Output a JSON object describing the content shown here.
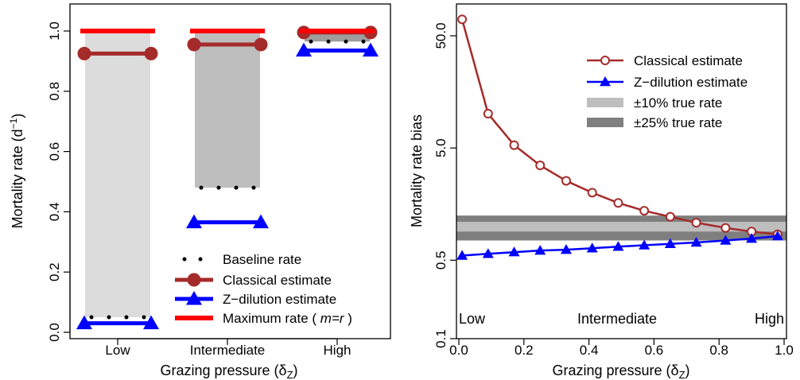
{
  "chart_data": [
    {
      "type": "bar",
      "categories": [
        "Low",
        "Intermediate",
        "High"
      ],
      "xlabel": "Grazing pressure (δZ)",
      "xlabel_parts": {
        "main": "Grazing pressure (δ",
        "sub": "Z",
        "close": ")"
      },
      "ylabel": "Mortality rate (d−1)",
      "ylabel_parts": {
        "main": "Mortality rate (d",
        "sup": "−1",
        "close": ")"
      },
      "ylim": [
        0,
        1
      ],
      "yticks": [
        "0.0",
        "0.2",
        "0.4",
        "0.6",
        "0.8",
        "1.0"
      ],
      "grid": false,
      "legend_position": "bottom-right",
      "series": [
        {
          "name": "Baseline rate",
          "values": [
            0.05,
            0.48,
            0.965
          ],
          "style": "dotted",
          "color": "#000000"
        },
        {
          "name": "Classical estimate",
          "values": [
            0.925,
            0.955,
            0.995
          ],
          "style": "line-circle",
          "color": "#A52A2A"
        },
        {
          "name": "Z−dilution estimate",
          "values": [
            0.03,
            0.365,
            0.935
          ],
          "style": "line-triangle",
          "color": "#0000FF"
        },
        {
          "name": "Maximum rate ( m=r )",
          "legend_parts": {
            "a": "Maximum rate ( ",
            "b": "m=r",
            "c": " )"
          },
          "values": [
            1.0,
            1.0,
            1.0
          ],
          "style": "line",
          "color": "#FF0000"
        }
      ],
      "shaded_ranges": [
        {
          "category": "Low",
          "from": 0.05,
          "to": 1.0,
          "color": "#DCDCDC"
        },
        {
          "category": "Intermediate",
          "from": 0.48,
          "to": 1.0,
          "color": "#BEBEBE"
        },
        {
          "category": "High",
          "from": 0.965,
          "to": 1.0,
          "color": "#9E9E9E"
        }
      ]
    },
    {
      "type": "line",
      "xlabel": "Grazing pressure (δZ)",
      "xlabel_parts": {
        "main": "Grazing pressure (δ",
        "sub": "Z",
        "close": ")"
      },
      "ylabel": "Mortality rate bias",
      "xlim": [
        0,
        1
      ],
      "xticks": [
        "0.0",
        "0.2",
        "0.4",
        "0.6",
        "0.8",
        "1.0"
      ],
      "ylim": [
        0.1,
        80
      ],
      "yscale": "log",
      "yticks": [
        "0.1",
        "0.5",
        "5.0",
        "50.0"
      ],
      "grid": false,
      "legend_position": "top-right",
      "region_labels": [
        "Low",
        "Intermediate",
        "High"
      ],
      "series": [
        {
          "name": "Classical estimate",
          "color": "#A52A2A",
          "marker": "open-circle",
          "x": [
            0.01,
            0.09,
            0.17,
            0.25,
            0.33,
            0.41,
            0.49,
            0.57,
            0.65,
            0.73,
            0.82,
            0.9,
            0.98
          ],
          "y": [
            70,
            10.1,
            5.3,
            3.5,
            2.55,
            2.0,
            1.62,
            1.38,
            1.22,
            1.08,
            0.97,
            0.9,
            0.85
          ]
        },
        {
          "name": "Z−dilution estimate",
          "color": "#0000FF",
          "marker": "filled-triangle",
          "x": [
            0.01,
            0.09,
            0.17,
            0.25,
            0.33,
            0.41,
            0.49,
            0.57,
            0.65,
            0.73,
            0.82,
            0.9,
            0.98
          ],
          "y": [
            0.55,
            0.57,
            0.59,
            0.61,
            0.62,
            0.64,
            0.66,
            0.68,
            0.7,
            0.72,
            0.75,
            0.78,
            0.82
          ]
        }
      ],
      "bands": [
        {
          "name": "±10% true rate",
          "from": 0.9,
          "to": 1.1,
          "color": "#BEBEBE"
        },
        {
          "name": "±25% true rate",
          "from": 0.75,
          "to": 1.25,
          "color": "#7F7F7F"
        }
      ]
    }
  ]
}
